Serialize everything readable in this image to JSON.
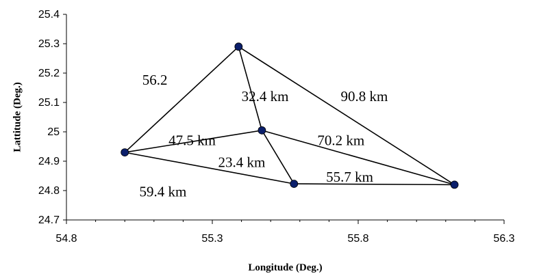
{
  "chart_data": {
    "type": "scatter",
    "xlabel": "Longitude (Deg.)",
    "ylabel": "Lattitude (Deg.)",
    "xlim": [
      54.8,
      56.3
    ],
    "ylim": [
      24.7,
      25.4
    ],
    "x_ticks": [
      "54.8",
      "55.3",
      "55.8",
      "56.3"
    ],
    "y_ticks": [
      "24.7",
      "24.8",
      "24.9",
      "25",
      "25.1",
      "25.2",
      "25.3",
      "25.4"
    ],
    "grid": false,
    "points": [
      {
        "x": 55.39,
        "y": 25.29
      },
      {
        "x": 55.0,
        "y": 24.93
      },
      {
        "x": 55.47,
        "y": 25.005
      },
      {
        "x": 55.58,
        "y": 24.823
      },
      {
        "x": 56.13,
        "y": 24.82
      }
    ],
    "edges": [
      [
        0,
        1
      ],
      [
        0,
        2
      ],
      [
        0,
        4
      ],
      [
        1,
        2
      ],
      [
        1,
        3
      ],
      [
        2,
        3
      ],
      [
        2,
        4
      ],
      [
        3,
        4
      ]
    ],
    "annotations": [
      {
        "text": "56.2",
        "x": 55.06,
        "y": 25.16
      },
      {
        "text": "32.4 km",
        "x": 55.4,
        "y": 25.105
      },
      {
        "text": "90.8 km",
        "x": 55.74,
        "y": 25.105
      },
      {
        "text": "47.5 km",
        "x": 55.15,
        "y": 24.955
      },
      {
        "text": "70.2 km",
        "x": 55.66,
        "y": 24.955
      },
      {
        "text": "23.4 km",
        "x": 55.32,
        "y": 24.88
      },
      {
        "text": "59.4 km",
        "x": 55.05,
        "y": 24.78
      },
      {
        "text": "55.7 km",
        "x": 55.69,
        "y": 24.83
      }
    ]
  }
}
